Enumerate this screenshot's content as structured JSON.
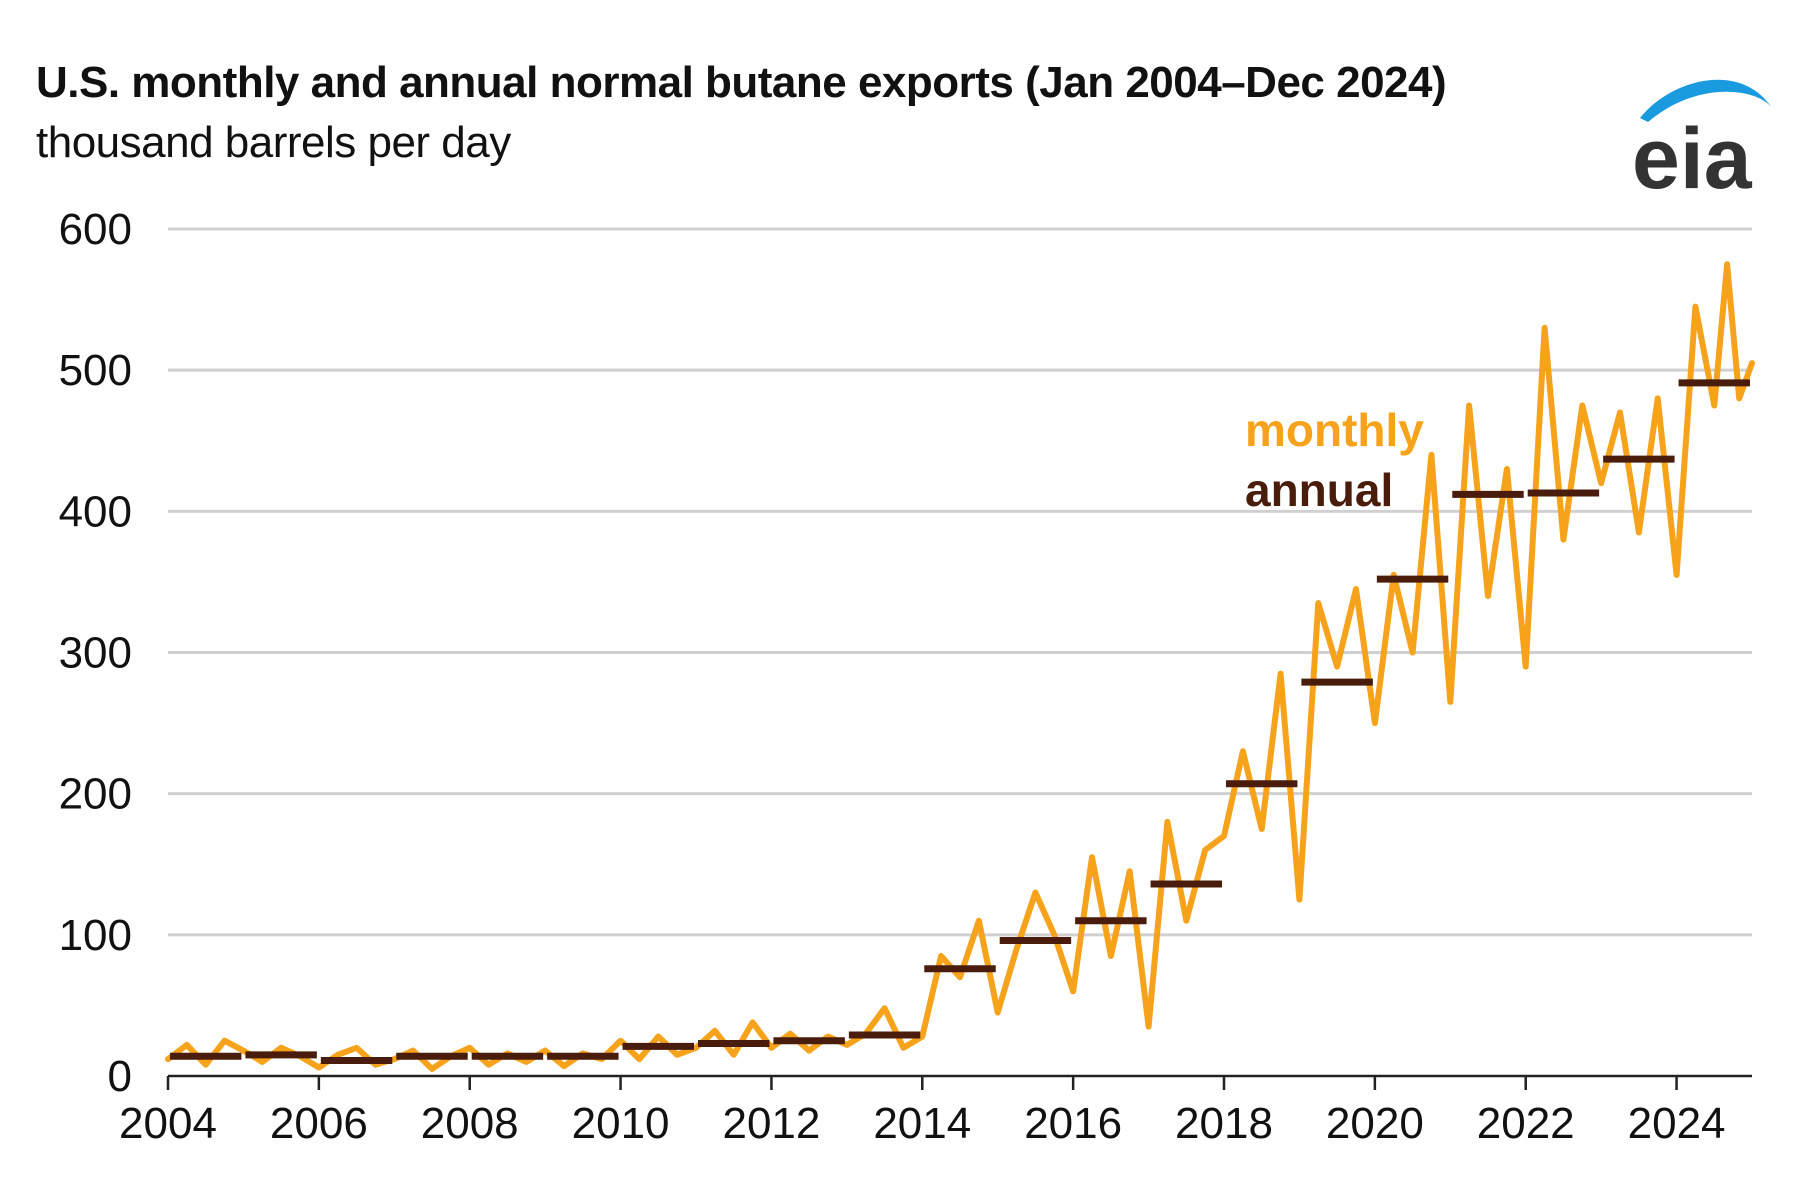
{
  "header": {
    "title": "U.S. monthly and annual normal butane exports (Jan 2004–Dec 2024)",
    "subtitle": "thousand barrels per day",
    "logo_text": "eia"
  },
  "chart_data": {
    "type": "line",
    "title": "U.S. monthly and annual normal butane exports (Jan 2004–Dec 2024)",
    "ylabel": "thousand barrels per day",
    "xlim": [
      2004,
      2025
    ],
    "ylim": [
      0,
      600
    ],
    "yticks": [
      0,
      100,
      200,
      300,
      400,
      500,
      600
    ],
    "xticks": [
      2004,
      2006,
      2008,
      2010,
      2012,
      2014,
      2016,
      2018,
      2020,
      2022,
      2024
    ],
    "grid": "horizontal",
    "legend": {
      "placement": "right-middle",
      "entries": [
        "monthly",
        "annual"
      ]
    },
    "colors": {
      "monthly": "#F7A21B",
      "annual": "#4A1C0C",
      "grid": "#D0D0D0",
      "logo_swoosh": "#1A9BE0",
      "logo_text": "#333333"
    },
    "series": [
      {
        "name": "monthly",
        "kind": "line",
        "points": [
          [
            2004.0,
            12
          ],
          [
            2004.25,
            22
          ],
          [
            2004.5,
            8
          ],
          [
            2004.75,
            25
          ],
          [
            2005.0,
            18
          ],
          [
            2005.25,
            10
          ],
          [
            2005.5,
            20
          ],
          [
            2005.75,
            14
          ],
          [
            2006.0,
            6
          ],
          [
            2006.25,
            15
          ],
          [
            2006.5,
            20
          ],
          [
            2006.75,
            8
          ],
          [
            2007.0,
            12
          ],
          [
            2007.25,
            18
          ],
          [
            2007.5,
            5
          ],
          [
            2007.75,
            14
          ],
          [
            2008.0,
            20
          ],
          [
            2008.25,
            8
          ],
          [
            2008.5,
            16
          ],
          [
            2008.75,
            10
          ],
          [
            2009.0,
            18
          ],
          [
            2009.25,
            7
          ],
          [
            2009.5,
            16
          ],
          [
            2009.75,
            12
          ],
          [
            2010.0,
            25
          ],
          [
            2010.25,
            12
          ],
          [
            2010.5,
            28
          ],
          [
            2010.75,
            15
          ],
          [
            2011.0,
            20
          ],
          [
            2011.25,
            32
          ],
          [
            2011.5,
            15
          ],
          [
            2011.75,
            38
          ],
          [
            2012.0,
            20
          ],
          [
            2012.25,
            30
          ],
          [
            2012.5,
            18
          ],
          [
            2012.75,
            28
          ],
          [
            2013.0,
            22
          ],
          [
            2013.25,
            30
          ],
          [
            2013.5,
            48
          ],
          [
            2013.75,
            20
          ],
          [
            2014.0,
            28
          ],
          [
            2014.25,
            85
          ],
          [
            2014.5,
            70
          ],
          [
            2014.75,
            110
          ],
          [
            2015.0,
            45
          ],
          [
            2015.25,
            90
          ],
          [
            2015.5,
            130
          ],
          [
            2015.75,
            100
          ],
          [
            2016.0,
            60
          ],
          [
            2016.25,
            155
          ],
          [
            2016.5,
            85
          ],
          [
            2016.75,
            145
          ],
          [
            2017.0,
            35
          ],
          [
            2017.25,
            180
          ],
          [
            2017.5,
            110
          ],
          [
            2017.75,
            160
          ],
          [
            2018.0,
            170
          ],
          [
            2018.25,
            230
          ],
          [
            2018.5,
            175
          ],
          [
            2018.75,
            285
          ],
          [
            2019.0,
            125
          ],
          [
            2019.25,
            335
          ],
          [
            2019.5,
            290
          ],
          [
            2019.75,
            345
          ],
          [
            2020.0,
            250
          ],
          [
            2020.25,
            355
          ],
          [
            2020.5,
            300
          ],
          [
            2020.75,
            440
          ],
          [
            2021.0,
            265
          ],
          [
            2021.25,
            475
          ],
          [
            2021.5,
            340
          ],
          [
            2021.75,
            430
          ],
          [
            2022.0,
            290
          ],
          [
            2022.25,
            530
          ],
          [
            2022.5,
            380
          ],
          [
            2022.75,
            475
          ],
          [
            2023.0,
            420
          ],
          [
            2023.25,
            470
          ],
          [
            2023.5,
            385
          ],
          [
            2023.75,
            480
          ],
          [
            2024.0,
            355
          ],
          [
            2024.25,
            545
          ],
          [
            2024.5,
            475
          ],
          [
            2024.67,
            575
          ],
          [
            2024.83,
            480
          ],
          [
            2025.0,
            505
          ]
        ]
      },
      {
        "name": "annual",
        "kind": "step",
        "years": [
          2004,
          2005,
          2006,
          2007,
          2008,
          2009,
          2010,
          2011,
          2012,
          2013,
          2014,
          2015,
          2016,
          2017,
          2018,
          2019,
          2020,
          2021,
          2022,
          2023,
          2024
        ],
        "values": [
          14,
          15,
          11,
          14,
          14,
          14,
          21,
          23,
          25,
          29,
          76,
          96,
          110,
          136,
          207,
          279,
          352,
          412,
          413,
          437,
          491
        ]
      }
    ]
  }
}
